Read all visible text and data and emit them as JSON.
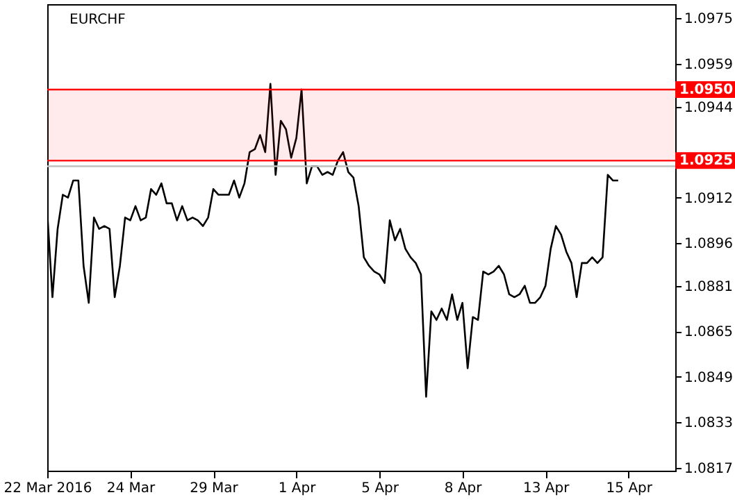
{
  "chart_data": {
    "type": "line",
    "title": "EURCHF",
    "categories": [
      "22 Mar 2016",
      null,
      null,
      null,
      null,
      null,
      null,
      null,
      null,
      null,
      null,
      null,
      null,
      null,
      null,
      null,
      "24 Mar",
      null,
      null,
      null,
      null,
      null,
      null,
      null,
      null,
      null,
      null,
      null,
      null,
      null,
      null,
      null,
      "29 Mar",
      null,
      null,
      null,
      null,
      null,
      null,
      null,
      null,
      null,
      null,
      null,
      null,
      null,
      null,
      null,
      "1 Apr",
      null,
      null,
      null,
      null,
      null,
      null,
      null,
      null,
      null,
      null,
      null,
      null,
      null,
      null,
      null,
      "5 Apr",
      null,
      null,
      null,
      null,
      null,
      null,
      null,
      null,
      null,
      null,
      null,
      null,
      null,
      null,
      null,
      "8 Apr",
      null,
      null,
      null,
      null,
      null,
      null,
      null,
      null,
      null,
      null,
      null,
      null,
      null,
      null,
      null,
      "13 Apr",
      null,
      null,
      null,
      null,
      null,
      null,
      null,
      null,
      null,
      null,
      null,
      null,
      null,
      null,
      null,
      "15 Apr",
      null,
      null,
      null,
      null,
      null,
      null,
      null,
      null,
      null
    ],
    "series": [
      {
        "color": "#000000",
        "values": [
          1.0907,
          1.0877,
          1.0901,
          1.0913,
          1.0912,
          1.0918,
          1.0918,
          1.0888,
          1.0875,
          1.0905,
          1.0901,
          1.0902,
          1.0901,
          1.0877,
          1.0888,
          1.0905,
          1.0904,
          1.0909,
          1.0904,
          1.0905,
          1.0915,
          1.0913,
          1.0917,
          1.091,
          1.091,
          1.0904,
          1.0909,
          1.0904,
          1.0905,
          1.0904,
          1.0902,
          1.0905,
          1.0915,
          1.0913,
          1.0913,
          1.0913,
          1.0918,
          1.0912,
          1.0917,
          1.0928,
          1.0929,
          1.0934,
          1.0928,
          1.0952,
          1.092,
          1.0939,
          1.0936,
          1.0926,
          1.0933,
          1.095,
          1.0917,
          1.0923,
          1.0923,
          1.092,
          1.0921,
          1.092,
          1.0925,
          1.0928,
          1.0921,
          1.0919,
          1.0909,
          1.0891,
          1.0888,
          1.0886,
          1.0885,
          1.0882,
          1.0904,
          1.0897,
          1.0901,
          1.0894,
          1.0891,
          1.0889,
          1.0885,
          1.0842,
          1.0872,
          1.0869,
          1.0873,
          1.0869,
          1.0878,
          1.0869,
          1.0875,
          1.0852,
          1.087,
          1.0869,
          1.0886,
          1.0885,
          1.0886,
          1.0888,
          1.0885,
          1.0878,
          1.0877,
          1.0878,
          1.0881,
          1.0875,
          1.0875,
          1.0877,
          1.0881,
          1.0894,
          1.0902,
          1.0899,
          1.0893,
          1.0889,
          1.0877,
          1.0889,
          1.0889,
          1.0891,
          1.0889,
          1.0891,
          1.092,
          1.0918,
          1.0918,
          null,
          null,
          null,
          null,
          null,
          null,
          null,
          null,
          null,
          null,
          null
        ]
      }
    ],
    "ylim": [
      1.0816,
      1.098
    ],
    "yticks": [
      1.0817,
      1.0833,
      1.0849,
      1.0865,
      1.0881,
      1.0896,
      1.0912,
      {
        "value": 1.0928,
        "label": null
      },
      1.0944,
      1.0959,
      1.0975
    ],
    "ref_lines": [
      {
        "axis": "y",
        "value": 1.095,
        "label": "1.0950",
        "color": "#ff0000"
      },
      {
        "axis": "y",
        "value": 1.0925,
        "label": "1.0925",
        "color": "#ff0000"
      },
      {
        "axis": "y",
        "value": 1.0923,
        "color": "#c0c0c0"
      }
    ],
    "bands": [
      {
        "axis": "y",
        "from": 1.0925,
        "to": 1.095,
        "color": "#ff0000"
      }
    ],
    "grid": false,
    "marker": "none",
    "line_style": "solid"
  }
}
